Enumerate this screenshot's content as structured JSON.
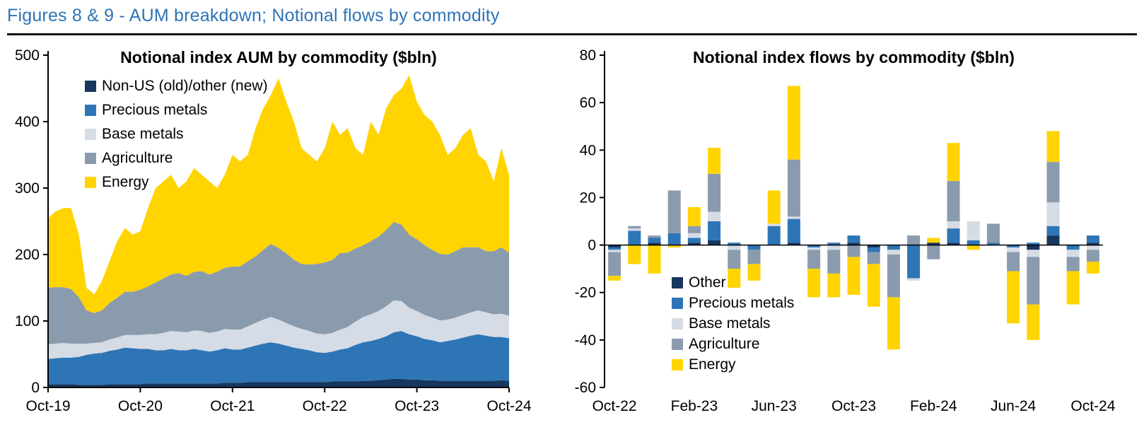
{
  "header": {
    "title": "Figures 8 & 9 - AUM breakdown; Notional flows by commodity",
    "title_color": "#2E74B5"
  },
  "chart_data": [
    {
      "type": "area",
      "title": "Notional index AUM  by commodity ($bln)",
      "stacked": true,
      "ylim": [
        0,
        500
      ],
      "y_ticks": [
        0,
        100,
        200,
        300,
        400,
        500
      ],
      "x_ticks": [
        "Oct-19",
        "Oct-20",
        "Oct-21",
        "Oct-22",
        "Oct-23",
        "Oct-24"
      ],
      "x_tick_idx": [
        0,
        12,
        24,
        36,
        48,
        60
      ],
      "legend": [
        {
          "label": "Non-US (old)/other (new)",
          "color": "#17375E"
        },
        {
          "label": "Precious metals",
          "color": "#2E75B6"
        },
        {
          "label": "Base metals",
          "color": "#D6DCE5"
        },
        {
          "label": "Agriculture",
          "color": "#8A9BAD"
        },
        {
          "label": "Energy",
          "color": "#FFD400"
        }
      ],
      "series": [
        {
          "name": "Non-US (old)/other (new)",
          "color": "#17375E",
          "values": [
            5,
            5,
            5,
            5,
            4,
            4,
            4,
            4,
            5,
            5,
            5,
            5,
            5,
            6,
            6,
            6,
            6,
            6,
            6,
            6,
            6,
            6,
            6,
            7,
            7,
            7,
            8,
            8,
            8,
            8,
            8,
            8,
            8,
            8,
            8,
            8,
            8,
            9,
            9,
            9,
            9,
            10,
            10,
            11,
            12,
            13,
            13,
            12,
            12,
            11,
            11,
            10,
            10,
            10,
            10,
            10,
            10,
            10,
            10,
            11,
            10
          ]
        },
        {
          "name": "Precious metals",
          "color": "#2E75B6",
          "values": [
            38,
            39,
            40,
            40,
            42,
            45,
            47,
            48,
            50,
            52,
            55,
            54,
            53,
            52,
            50,
            50,
            52,
            50,
            50,
            52,
            50,
            48,
            50,
            52,
            50,
            50,
            52,
            55,
            58,
            60,
            58,
            55,
            52,
            50,
            48,
            45,
            44,
            45,
            48,
            50,
            55,
            58,
            60,
            62,
            65,
            70,
            72,
            68,
            65,
            62,
            60,
            58,
            60,
            62,
            65,
            68,
            70,
            68,
            66,
            65,
            64
          ]
        },
        {
          "name": "Base metals",
          "color": "#D6DCE5",
          "values": [
            22,
            22,
            22,
            21,
            20,
            17,
            16,
            16,
            17,
            18,
            19,
            20,
            21,
            22,
            24,
            26,
            27,
            28,
            27,
            28,
            29,
            28,
            28,
            29,
            30,
            30,
            32,
            34,
            36,
            38,
            36,
            34,
            32,
            30,
            29,
            28,
            28,
            28,
            30,
            32,
            35,
            38,
            40,
            42,
            45,
            48,
            45,
            40,
            38,
            36,
            34,
            33,
            32,
            33,
            34,
            35,
            36,
            35,
            34,
            35,
            34
          ]
        },
        {
          "name": "Agriculture",
          "color": "#8A9BAD",
          "values": [
            85,
            85,
            84,
            82,
            70,
            50,
            45,
            48,
            55,
            60,
            65,
            65,
            68,
            72,
            78,
            82,
            85,
            88,
            85,
            88,
            90,
            88,
            90,
            92,
            95,
            95,
            98,
            100,
            105,
            110,
            108,
            105,
            100,
            98,
            100,
            105,
            108,
            110,
            115,
            112,
            110,
            108,
            110,
            112,
            115,
            118,
            115,
            110,
            108,
            105,
            102,
            100,
            98,
            100,
            102,
            98,
            95,
            92,
            95,
            100,
            95
          ]
        },
        {
          "name": "Energy",
          "color": "#FFD400",
          "values": [
            105,
            114,
            119,
            122,
            94,
            34,
            28,
            44,
            63,
            85,
            96,
            86,
            88,
            118,
            142,
            146,
            150,
            128,
            142,
            156,
            145,
            140,
            126,
            140,
            168,
            158,
            160,
            193,
            213,
            224,
            255,
            228,
            208,
            174,
            165,
            154,
            172,
            208,
            178,
            187,
            151,
            136,
            180,
            153,
            183,
            191,
            205,
            240,
            207,
            196,
            193,
            179,
            150,
            155,
            169,
            179,
            139,
            135,
            105,
            149,
            117
          ]
        }
      ]
    },
    {
      "type": "bar",
      "title": "Notional index flows by commodity ($bln)",
      "stacked": true,
      "ylim": [
        -60,
        80
      ],
      "y_ticks": [
        -60,
        -40,
        -20,
        0,
        20,
        40,
        60,
        80
      ],
      "x_ticks": [
        "Oct-22",
        "Feb-23",
        "Jun-23",
        "Oct-23",
        "Feb-24",
        "Jun-24",
        "Oct-24"
      ],
      "x_tick_idx": [
        0,
        4,
        8,
        12,
        16,
        20,
        24
      ],
      "months": [
        "Oct-22",
        "Nov-22",
        "Dec-22",
        "Jan-23",
        "Feb-23",
        "Mar-23",
        "Apr-23",
        "May-23",
        "Jun-23",
        "Jul-23",
        "Aug-23",
        "Sep-23",
        "Oct-23",
        "Nov-23",
        "Dec-23",
        "Jan-24",
        "Feb-24",
        "Mar-24",
        "Apr-24",
        "May-24",
        "Jun-24",
        "Jul-24",
        "Aug-24",
        "Sep-24",
        "Oct-24"
      ],
      "legend": [
        {
          "label": "Other",
          "color": "#17375E"
        },
        {
          "label": "Precious metals",
          "color": "#2E75B6"
        },
        {
          "label": "Base metals",
          "color": "#D6DCE5"
        },
        {
          "label": "Agriculture",
          "color": "#8A9BAD"
        },
        {
          "label": "Energy",
          "color": "#FFD400"
        }
      ],
      "series": [
        {
          "name": "Other",
          "color": "#17375E",
          "values": [
            -1,
            0,
            1,
            0,
            1,
            2,
            0,
            0,
            0,
            1,
            0,
            0,
            1,
            -1,
            0,
            0,
            1,
            1,
            0,
            0,
            0,
            -2,
            4,
            0,
            1
          ]
        },
        {
          "name": "Precious metals",
          "color": "#2E75B6",
          "values": [
            -1,
            6,
            2,
            5,
            2,
            8,
            1,
            -2,
            8,
            10,
            -1,
            1,
            3,
            -2,
            -2,
            -14,
            0,
            6,
            2,
            1,
            -1,
            1,
            4,
            -2,
            3
          ]
        },
        {
          "name": "Base metals",
          "color": "#D6DCE5",
          "values": [
            -1,
            1,
            0,
            0,
            2,
            4,
            -2,
            0,
            1,
            1,
            -1,
            -2,
            0,
            0,
            -2,
            -1,
            0,
            3,
            8,
            0,
            -2,
            -3,
            10,
            -3,
            -2
          ]
        },
        {
          "name": "Agriculture",
          "color": "#8A9BAD",
          "values": [
            -10,
            1,
            1,
            18,
            3,
            16,
            -8,
            -6,
            0,
            24,
            -8,
            -10,
            -5,
            -5,
            -18,
            4,
            -6,
            17,
            0,
            8,
            -8,
            -20,
            17,
            -6,
            -5
          ]
        },
        {
          "name": "Energy",
          "color": "#FFD400",
          "values": [
            -2,
            -8,
            -12,
            -1,
            8,
            11,
            -8,
            -7,
            14,
            31,
            -12,
            -10,
            -16,
            -18,
            -22,
            0,
            2,
            16,
            -2,
            0,
            -22,
            -15,
            13,
            -14,
            -5
          ]
        }
      ]
    }
  ]
}
